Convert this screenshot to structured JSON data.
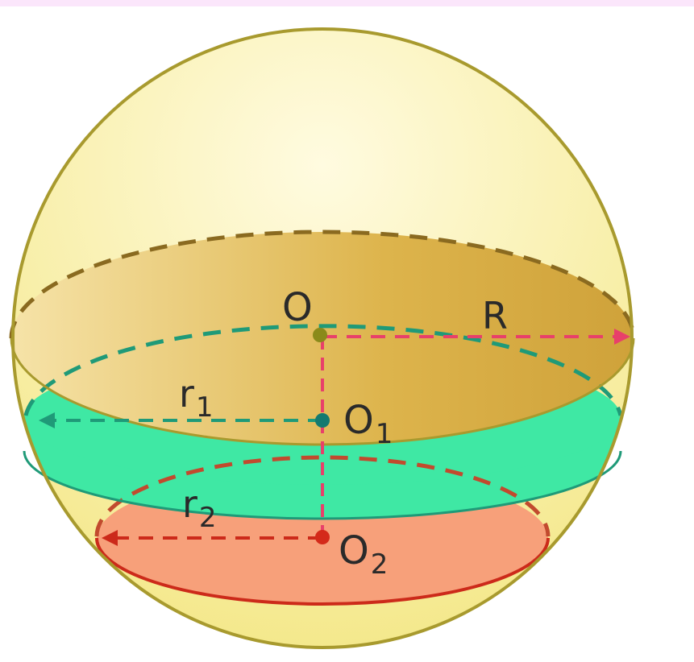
{
  "labels": {
    "center": "O",
    "radius": "R",
    "r1": {
      "main": "r",
      "sub": "1"
    },
    "o1": {
      "main": "O",
      "sub": "1"
    },
    "r2": {
      "main": "r",
      "sub": "2"
    },
    "o2": {
      "main": "O",
      "sub": "2"
    }
  },
  "colors": {
    "top_strip": "#fbe6fb",
    "sphere_fill": "#f4e88a",
    "sphere_highlight": "#fffbe0",
    "sphere_outline": "#a89a2e",
    "equator_disk": "#ddb44c",
    "equator_dash": "#8a6a20",
    "green_band": "#3fe8a4",
    "green_dash": "#1f9a78",
    "red_disk": "#f7a07a",
    "red_dash": "#c24a2e",
    "red_outline": "#cc2a1a",
    "radius_arrow": "#e8406a",
    "teal_point": "#147a70",
    "red_point": "#d42a1a",
    "olive_point": "#8a8a1a",
    "text": "#2a2a2a"
  }
}
